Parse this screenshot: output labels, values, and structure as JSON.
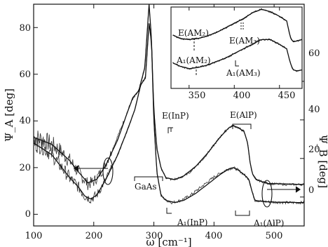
{
  "chart_data": [
    {
      "type": "line",
      "title": "",
      "xlabel": "ω [cm⁻¹]",
      "ylabel_left": "Ψ_A [deg]",
      "ylabel_right": "Ψ_B [deg]",
      "xlim": [
        100,
        550
      ],
      "ylim_left": [
        -5,
        90
      ],
      "ylim_right": [
        -15,
        100
      ],
      "x_ticks": [
        100,
        200,
        300,
        400,
        500
      ],
      "x_tick_labels": [
        "100",
        "200",
        "300",
        "400",
        "500"
      ],
      "y_left_ticks": [
        0,
        20,
        40,
        60,
        80
      ],
      "y_left_tick_labels": [
        "0",
        "20",
        "40",
        "60",
        "80"
      ],
      "y_right_ticks": [
        0,
        20,
        40,
        60
      ],
      "y_right_tick_labels": [
        "0",
        "20",
        "40",
        "60"
      ],
      "grid": false,
      "series": [
        {
          "axis": "left",
          "style": "noisy-experimental",
          "x": [
            100,
            115,
            130,
            145,
            160,
            175,
            190,
            200,
            215,
            230,
            250,
            262,
            275,
            285,
            292,
            296,
            300,
            305,
            312,
            320,
            330,
            345,
            360,
            380,
            400,
            420,
            432,
            440,
            450,
            458,
            463,
            468,
            480,
            500,
            520,
            550
          ],
          "y": [
            33,
            32,
            30,
            27,
            23,
            18,
            13,
            14,
            19,
            27,
            40,
            48,
            53,
            63,
            90,
            75,
            40,
            18,
            8,
            6,
            5,
            6,
            8,
            12,
            16,
            19,
            20,
            19,
            17,
            15,
            10,
            6,
            5.5,
            5.2,
            5,
            5
          ]
        },
        {
          "axis": "left",
          "style": "fit",
          "x": [
            100,
            130,
            160,
            175,
            190,
            205,
            220,
            240,
            255,
            265,
            275,
            285,
            292,
            296,
            300,
            305,
            312,
            320,
            335,
            350,
            370,
            390,
            410,
            425,
            432,
            440,
            450,
            458,
            463,
            468,
            480,
            500,
            550
          ],
          "y": [
            33,
            30,
            23,
            18,
            13.5,
            15,
            21,
            32,
            43,
            50,
            53,
            63,
            90,
            75,
            40,
            18,
            8,
            6,
            5,
            6,
            9,
            13,
            17,
            19.5,
            20,
            19,
            17,
            15,
            10,
            6,
            5.5,
            5.2,
            5
          ]
        },
        {
          "axis": "right",
          "style": "noisy-experimental",
          "x": [
            100,
            115,
            130,
            145,
            160,
            175,
            185,
            195,
            205,
            220,
            240,
            255,
            268,
            278,
            286,
            292,
            296,
            300,
            305,
            312,
            320,
            330,
            345,
            360,
            380,
            400,
            415,
            425,
            432,
            440,
            450,
            456,
            460,
            464,
            470,
            490,
            520,
            550
          ],
          "y": [
            28,
            26,
            22,
            16,
            10,
            5,
            0.5,
            -1,
            1,
            9,
            22,
            34,
            45,
            58,
            62,
            90,
            80,
            45,
            25,
            15,
            10,
            9,
            10,
            13,
            19,
            27,
            33,
            36,
            37,
            36,
            34,
            28,
            18,
            12,
            9,
            7,
            6.5,
            6.5
          ]
        },
        {
          "axis": "right",
          "style": "fit",
          "x": [
            100,
            130,
            160,
            175,
            185,
            195,
            205,
            220,
            240,
            255,
            268,
            278,
            286,
            292,
            296,
            300,
            305,
            312,
            320,
            335,
            350,
            370,
            390,
            410,
            425,
            432,
            440,
            450,
            456,
            460,
            464,
            470,
            490,
            550
          ],
          "y": [
            28,
            22,
            10,
            5,
            0.5,
            -1,
            1,
            9,
            22,
            34,
            45,
            58,
            62,
            90,
            80,
            45,
            25,
            15,
            10,
            9,
            11,
            16,
            23,
            31,
            36,
            37,
            36,
            34,
            28,
            18,
            12,
            9,
            7,
            6.5
          ]
        }
      ],
      "annotations": [
        {
          "text": "GaAs",
          "x": 268,
          "y": 12
        },
        {
          "text": "E(InP)",
          "x": 328,
          "y": 38
        },
        {
          "text": "A₁(InP)",
          "x": 340,
          "y": -4
        },
        {
          "text": "E(AlP)",
          "x": 438,
          "y": 38
        },
        {
          "text": "A₁(AlP)",
          "x": 476,
          "y": -4
        }
      ]
    },
    {
      "type": "line",
      "title": "",
      "xlabel": "",
      "ylabel": "",
      "xlim": [
        330,
        475
      ],
      "ylim": [
        40,
        75
      ],
      "x_ticks": [
        350,
        400,
        450
      ],
      "x_tick_labels": [
        "350",
        "400",
        "450"
      ],
      "y_right_ticks": [
        60
      ],
      "y_right_tick_labels": [
        "60"
      ],
      "grid": false,
      "series": [
        {
          "style": "noisy-experimental",
          "x": [
            332,
            340,
            350,
            360,
            370,
            380,
            390,
            400,
            410,
            420,
            430,
            440,
            450,
            458,
            462,
            465,
            470,
            475
          ],
          "y": [
            63,
            61.5,
            61,
            61.5,
            62.5,
            64,
            66,
            68,
            70,
            72.5,
            74,
            73,
            71,
            69,
            62,
            60,
            60.5,
            61
          ]
        },
        {
          "style": "fit",
          "x": [
            332,
            340,
            350,
            360,
            370,
            380,
            390,
            400,
            410,
            420,
            430,
            440,
            450,
            458,
            462,
            465,
            470,
            475
          ],
          "y": [
            63,
            61.5,
            61,
            61.5,
            62.5,
            64,
            66,
            68,
            70,
            72.5,
            74,
            73,
            71,
            69,
            62,
            60,
            60.5,
            61
          ]
        },
        {
          "style": "noisy-experimental",
          "x": [
            332,
            340,
            350,
            360,
            370,
            380,
            390,
            400,
            410,
            420,
            430,
            440,
            450,
            458,
            462,
            465,
            470,
            475
          ],
          "y": [
            51,
            49.5,
            48.5,
            49,
            50,
            51.5,
            53,
            55,
            57,
            59,
            61,
            61,
            59,
            57,
            51,
            48,
            47.5,
            48
          ]
        },
        {
          "style": "fit",
          "x": [
            332,
            340,
            350,
            360,
            370,
            380,
            390,
            400,
            410,
            420,
            430,
            440,
            450,
            458,
            462,
            465,
            470,
            475
          ],
          "y": [
            51,
            49.5,
            48.5,
            49,
            50,
            51.5,
            53,
            55,
            57,
            59,
            61,
            61,
            59,
            57,
            51,
            48,
            47.5,
            48
          ]
        }
      ],
      "annotations": [
        {
          "text": "E(AM₂)",
          "x": 352,
          "y": 66
        },
        {
          "text": "E(AM₃)",
          "x": 404,
          "y": 63
        },
        {
          "text": "A₁(AM₂)",
          "x": 352,
          "y": 53
        },
        {
          "text": "A₁(AM₃)",
          "x": 410,
          "y": 44
        }
      ]
    }
  ]
}
